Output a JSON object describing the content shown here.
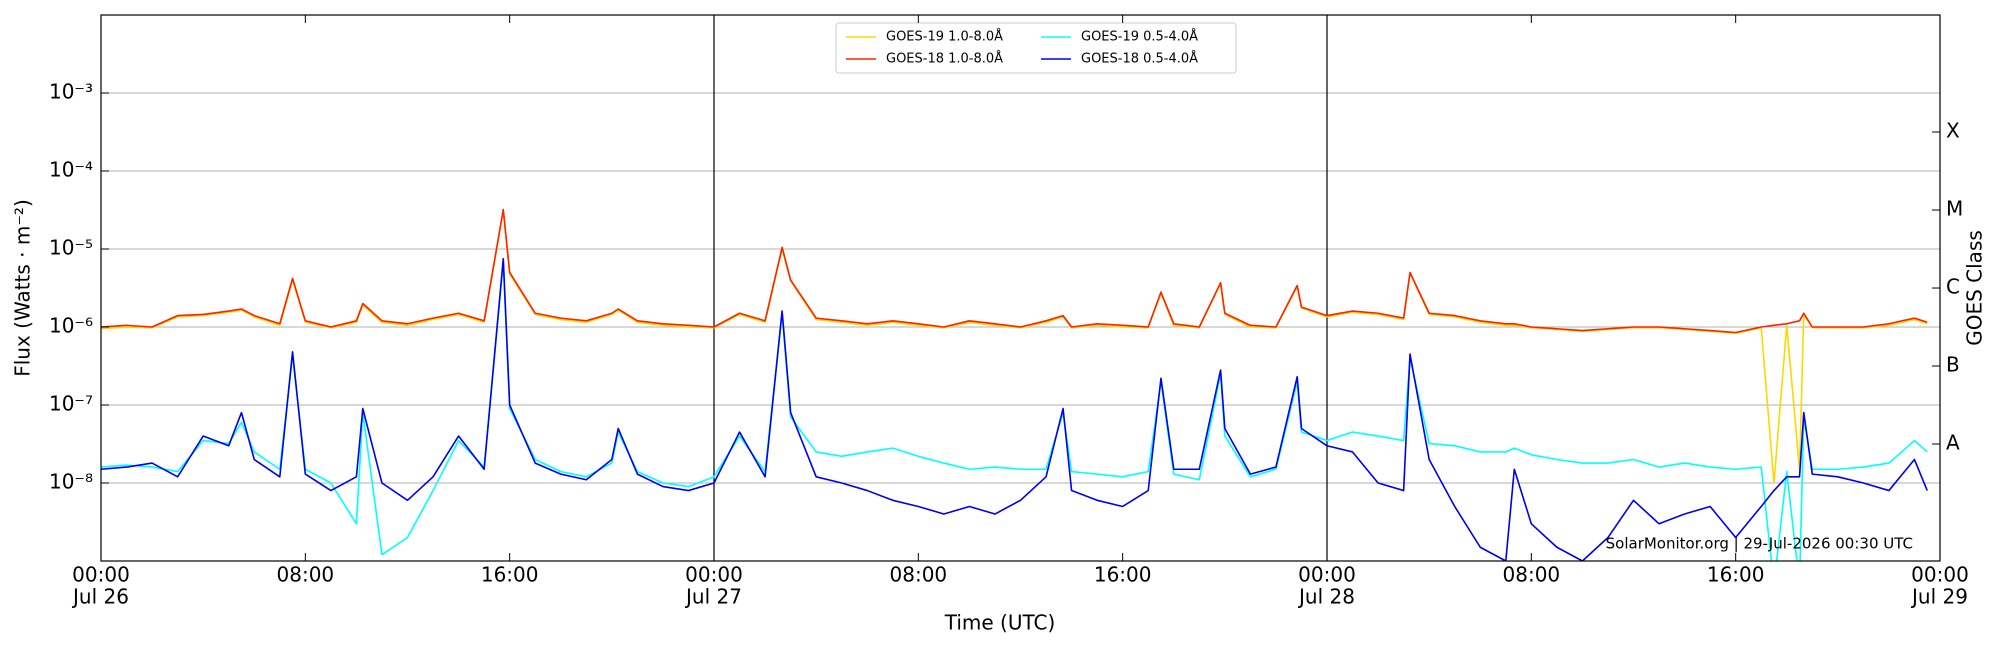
{
  "chart_data": {
    "type": "line",
    "ylabel": "Flux (Watts · m⁻²)",
    "xlabel": "Time (UTC)",
    "y2label": "GOES Class",
    "footer": "SolarMonitor.org | 29-Jul-2026 00:30 UTC",
    "log_y": true,
    "grid": true,
    "legend": "top-center",
    "xlim": [
      "Jul 26 00:00",
      "Jul 29 00:00"
    ],
    "xticks": [
      {
        "value": "Jul 26 00:00",
        "label": "00:00",
        "date": "Jul 26"
      },
      {
        "value": "Jul 26 08:00",
        "label": "08:00"
      },
      {
        "value": "Jul 26 16:00",
        "label": "16:00"
      },
      {
        "value": "Jul 27 00:00",
        "label": "00:00",
        "date": "Jul 27"
      },
      {
        "value": "Jul 27 08:00",
        "label": "08:00"
      },
      {
        "value": "Jul 27 16:00",
        "label": "16:00"
      },
      {
        "value": "Jul 28 00:00",
        "label": "00:00",
        "date": "Jul 28"
      },
      {
        "value": "Jul 28 08:00",
        "label": "08:00"
      },
      {
        "value": "Jul 28 16:00",
        "label": "16:00"
      },
      {
        "value": "Jul 29 00:00",
        "label": "00:00",
        "date": "Jul 29"
      }
    ],
    "ylim": [
      1e-09,
      0.01
    ],
    "yticks": [
      {
        "value": 1e-08,
        "label": "10⁻⁸"
      },
      {
        "value": 1e-07,
        "label": "10⁻⁷"
      },
      {
        "value": 1e-06,
        "label": "10⁻⁶"
      },
      {
        "value": 1e-05,
        "label": "10⁻⁵"
      },
      {
        "value": 0.0001,
        "label": "10⁻⁴"
      },
      {
        "value": 0.001,
        "label": "10⁻³"
      }
    ],
    "y2lim": [
      1e-09,
      0.01
    ],
    "y2ticks": [
      {
        "value": 3.16e-08,
        "label": "A"
      },
      {
        "value": 3.16e-07,
        "label": "B"
      },
      {
        "value": 3.16e-06,
        "label": "C"
      },
      {
        "value": 3.16e-05,
        "label": "M"
      },
      {
        "value": 0.000316,
        "label": "X"
      }
    ],
    "x": [
      "Jul 26 00:00",
      "Jul 26 01:00",
      "Jul 26 02:00",
      "Jul 26 03:00",
      "Jul 26 04:00",
      "Jul 26 05:00",
      "Jul 26 05:30",
      "Jul 26 06:00",
      "Jul 26 07:00",
      "Jul 26 07:30",
      "Jul 26 08:00",
      "Jul 26 09:00",
      "Jul 26 10:00",
      "Jul 26 10:15",
      "Jul 26 11:00",
      "Jul 26 12:00",
      "Jul 26 13:00",
      "Jul 26 14:00",
      "Jul 26 15:00",
      "Jul 26 15:45",
      "Jul 26 16:00",
      "Jul 26 17:00",
      "Jul 26 18:00",
      "Jul 26 19:00",
      "Jul 26 20:00",
      "Jul 26 20:15",
      "Jul 26 21:00",
      "Jul 26 22:00",
      "Jul 26 23:00",
      "Jul 27 00:00",
      "Jul 27 01:00",
      "Jul 27 02:00",
      "Jul 27 02:40",
      "Jul 27 03:00",
      "Jul 27 04:00",
      "Jul 27 05:00",
      "Jul 27 06:00",
      "Jul 27 07:00",
      "Jul 27 08:00",
      "Jul 27 09:00",
      "Jul 27 10:00",
      "Jul 27 11:00",
      "Jul 27 12:00",
      "Jul 27 13:00",
      "Jul 27 13:40",
      "Jul 27 14:00",
      "Jul 27 15:00",
      "Jul 27 16:00",
      "Jul 27 17:00",
      "Jul 27 17:30",
      "Jul 27 18:00",
      "Jul 27 19:00",
      "Jul 27 19:50",
      "Jul 27 20:00",
      "Jul 27 21:00",
      "Jul 27 22:00",
      "Jul 27 22:50",
      "Jul 27 23:00",
      "Jul 28 00:00",
      "Jul 28 01:00",
      "Jul 28 02:00",
      "Jul 28 03:00",
      "Jul 28 03:15",
      "Jul 28 04:00",
      "Jul 28 05:00",
      "Jul 28 06:00",
      "Jul 28 07:00",
      "Jul 28 07:20",
      "Jul 28 08:00",
      "Jul 28 09:00",
      "Jul 28 10:00",
      "Jul 28 11:00",
      "Jul 28 12:00",
      "Jul 28 13:00",
      "Jul 28 14:00",
      "Jul 28 15:00",
      "Jul 28 16:00",
      "Jul 28 17:00",
      "Jul 28 17:30",
      "Jul 28 18:00",
      "Jul 28 18:30",
      "Jul 28 18:40",
      "Jul 28 19:00",
      "Jul 28 20:00",
      "Jul 28 21:00",
      "Jul 28 22:00",
      "Jul 28 23:00",
      "Jul 28 23:30"
    ],
    "series": [
      {
        "name": "GOES-19 1.0-8.0Å",
        "color": "#ffd700",
        "values": [
          9.5e-07,
          1e-06,
          9.8e-07,
          1.35e-06,
          1.4e-06,
          1.55e-06,
          1.65e-06,
          1.35e-06,
          1.05e-06,
          4e-06,
          1.15e-06,
          9.8e-07,
          1.15e-06,
          1.9e-06,
          1.15e-06,
          1.05e-06,
          1.25e-06,
          1.45e-06,
          1.15e-06,
          3.1e-05,
          4.8e-06,
          1.45e-06,
          1.25e-06,
          1.15e-06,
          1.45e-06,
          1.65e-06,
          1.15e-06,
          1.05e-06,
          1e-06,
          9.8e-07,
          1.45e-06,
          1.15e-06,
          1e-05,
          3.9e-06,
          1.25e-06,
          1.15e-06,
          1.05e-06,
          1.15e-06,
          1.05e-06,
          9.8e-07,
          1.15e-06,
          1.05e-06,
          9.8e-07,
          1.15e-06,
          1.35e-06,
          9.8e-07,
          1.05e-06,
          1e-06,
          9.8e-07,
          2.7e-06,
          1.05e-06,
          9.8e-07,
          3.6e-06,
          1.45e-06,
          1e-06,
          9.8e-07,
          3.3e-06,
          1.75e-06,
          1.35e-06,
          1.55e-06,
          1.45e-06,
          1.25e-06,
          4.9e-06,
          1.45e-06,
          1.35e-06,
          1.15e-06,
          1.05e-06,
          1.05e-06,
          9.8e-07,
          9.3e-07,
          8.8e-07,
          9.3e-07,
          9.8e-07,
          9.8e-07,
          9.3e-07,
          8.8e-07,
          8.3e-07,
          9.8e-07,
          1e-08,
          1.05e-06,
          1.5e-08,
          1.45e-06,
          9.8e-07,
          9.8e-07,
          9.8e-07,
          1.05e-06,
          1.25e-06,
          1.1e-06
        ]
      },
      {
        "name": "GOES-18 1.0-8.0Å",
        "color": "#ff2200",
        "values": [
          1e-06,
          1.05e-06,
          1e-06,
          1.4e-06,
          1.45e-06,
          1.6e-06,
          1.7e-06,
          1.4e-06,
          1.1e-06,
          4.2e-06,
          1.2e-06,
          1e-06,
          1.2e-06,
          2e-06,
          1.2e-06,
          1.1e-06,
          1.3e-06,
          1.5e-06,
          1.2e-06,
          3.2e-05,
          5e-06,
          1.5e-06,
          1.3e-06,
          1.2e-06,
          1.5e-06,
          1.7e-06,
          1.2e-06,
          1.1e-06,
          1.05e-06,
          1e-06,
          1.5e-06,
          1.2e-06,
          1.05e-05,
          4e-06,
          1.3e-06,
          1.2e-06,
          1.1e-06,
          1.2e-06,
          1.1e-06,
          1e-06,
          1.2e-06,
          1.1e-06,
          1e-06,
          1.2e-06,
          1.4e-06,
          1e-06,
          1.1e-06,
          1.05e-06,
          1e-06,
          2.8e-06,
          1.1e-06,
          1e-06,
          3.7e-06,
          1.5e-06,
          1.05e-06,
          1e-06,
          3.4e-06,
          1.8e-06,
          1.4e-06,
          1.6e-06,
          1.5e-06,
          1.3e-06,
          5e-06,
          1.5e-06,
          1.4e-06,
          1.2e-06,
          1.1e-06,
          1.1e-06,
          1e-06,
          9.5e-07,
          9e-07,
          9.5e-07,
          1e-06,
          1e-06,
          9.5e-07,
          9e-07,
          8.5e-07,
          1e-06,
          1.05e-06,
          1.1e-06,
          1.2e-06,
          1.5e-06,
          1e-06,
          1e-06,
          1e-06,
          1.1e-06,
          1.3e-06,
          1.15e-06
        ]
      },
      {
        "name": "GOES-19 0.5-4.0Å",
        "color": "#00ffff",
        "values": [
          1.6e-08,
          1.7e-08,
          1.6e-08,
          1.4e-08,
          3.5e-08,
          3.2e-08,
          6e-08,
          2.5e-08,
          1.5e-08,
          4.3e-07,
          1.5e-08,
          1e-08,
          3e-09,
          8e-08,
          1.2e-09,
          2e-09,
          8e-09,
          3.5e-08,
          1.6e-08,
          6.8e-06,
          9e-08,
          2e-08,
          1.4e-08,
          1.2e-08,
          1.8e-08,
          4.5e-08,
          1.4e-08,
          1e-08,
          9e-09,
          1.2e-08,
          4e-08,
          1.4e-08,
          1.5e-06,
          7e-08,
          2.5e-08,
          2.2e-08,
          2.5e-08,
          2.8e-08,
          2.2e-08,
          1.8e-08,
          1.5e-08,
          1.6e-08,
          1.5e-08,
          1.5e-08,
          8e-08,
          1.4e-08,
          1.3e-08,
          1.2e-08,
          1.4e-08,
          2e-07,
          1.3e-08,
          1.1e-08,
          2.5e-07,
          4e-08,
          1.2e-08,
          1.5e-08,
          2e-07,
          4.5e-08,
          3.5e-08,
          4.5e-08,
          4e-08,
          3.5e-08,
          4e-07,
          3.2e-08,
          3e-08,
          2.5e-08,
          2.5e-08,
          2.8e-08,
          2.3e-08,
          2e-08,
          1.8e-08,
          1.8e-08,
          2e-08,
          1.6e-08,
          1.8e-08,
          1.6e-08,
          1.5e-08,
          1.6e-08,
          5e-10,
          1.4e-08,
          5e-10,
          7e-08,
          1.5e-08,
          1.5e-08,
          1.6e-08,
          1.8e-08,
          3.5e-08,
          2.5e-08
        ]
      },
      {
        "name": "GOES-18 0.5-4.0Å",
        "color": "#0000ee",
        "values": [
          1.5e-08,
          1.6e-08,
          1.8e-08,
          1.2e-08,
          4e-08,
          3e-08,
          8e-08,
          2e-08,
          1.2e-08,
          4.8e-07,
          1.3e-08,
          8e-09,
          1.2e-08,
          9e-08,
          1e-08,
          6e-09,
          1.2e-08,
          4e-08,
          1.5e-08,
          7.5e-06,
          1e-07,
          1.8e-08,
          1.3e-08,
          1.1e-08,
          2e-08,
          5e-08,
          1.3e-08,
          9e-09,
          8e-09,
          1e-08,
          4.5e-08,
          1.2e-08,
          1.6e-06,
          8e-08,
          1.2e-08,
          1e-08,
          8e-09,
          6e-09,
          5e-09,
          4e-09,
          5e-09,
          4e-09,
          6e-09,
          1.2e-08,
          9e-08,
          8e-09,
          6e-09,
          5e-09,
          8e-09,
          2.2e-07,
          1.5e-08,
          1.5e-08,
          2.8e-07,
          5e-08,
          1.3e-08,
          1.6e-08,
          2.3e-07,
          5e-08,
          3e-08,
          2.5e-08,
          1e-08,
          8e-09,
          4.5e-07,
          2e-08,
          5e-09,
          1.5e-09,
          1e-09,
          1.5e-08,
          3e-09,
          1.5e-09,
          1e-09,
          2e-09,
          6e-09,
          3e-09,
          4e-09,
          5e-09,
          2e-09,
          5e-09,
          8e-09,
          1.2e-08,
          1.2e-08,
          8e-08,
          1.3e-08,
          1.2e-08,
          1e-08,
          8e-09,
          2e-08,
          8e-09
        ]
      }
    ]
  }
}
